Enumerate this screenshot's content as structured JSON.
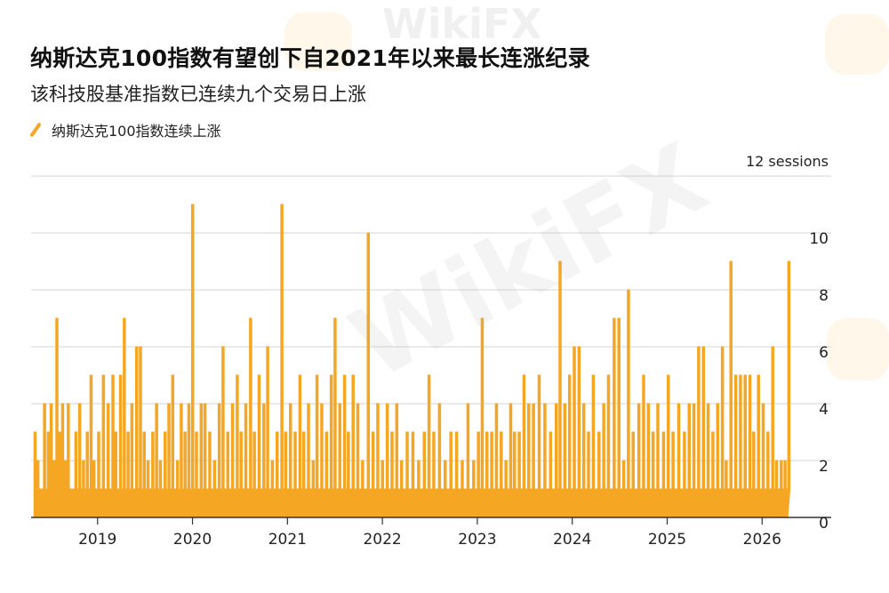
{
  "title": "纳斯达克100指数有望创下自2021年以来最长连涨纪录",
  "subtitle": "该科技股基准指数已连续九个交易日上涨",
  "legend_label": "纳斯达克100指数连续上涨",
  "watermark": "WikiFX",
  "colors": {
    "series": "#f5a623",
    "grid": "#d6d6d6",
    "axis": "#333333"
  },
  "chart_data": {
    "type": "area",
    "title": "纳斯达克100指数有望创下自2021年以来最长连涨纪录",
    "subtitle": "该科技股基准指数已连续九个交易日上涨",
    "xlabel": "",
    "ylabel": "",
    "y_unit_label": "12 sessions",
    "xlim": [
      2018.3,
      2026.4
    ],
    "ylim": [
      0,
      12
    ],
    "y_ticks": [
      0,
      2,
      4,
      6,
      8,
      10
    ],
    "y_tick_labels": [
      "0",
      "2",
      "4",
      "6",
      "8",
      "10"
    ],
    "x_ticks": [
      2019,
      2020,
      2021,
      2022,
      2023,
      2024,
      2025,
      2026
    ],
    "x_tick_labels": [
      "2019",
      "2020",
      "2021",
      "2022",
      "2023",
      "2024",
      "2025",
      "2026"
    ],
    "grid": true,
    "legend": "top-left",
    "series": [
      {
        "name": "纳斯达克100指数连续上涨",
        "points": [
          [
            2018.33,
            3
          ],
          [
            2018.36,
            2
          ],
          [
            2018.4,
            1
          ],
          [
            2018.43,
            4
          ],
          [
            2018.47,
            3
          ],
          [
            2018.5,
            4
          ],
          [
            2018.53,
            2
          ],
          [
            2018.56,
            7
          ],
          [
            2018.59,
            3
          ],
          [
            2018.62,
            4
          ],
          [
            2018.65,
            2
          ],
          [
            2018.68,
            4
          ],
          [
            2018.72,
            1
          ],
          [
            2018.76,
            3
          ],
          [
            2018.8,
            4
          ],
          [
            2018.84,
            2
          ],
          [
            2018.88,
            3
          ],
          [
            2018.92,
            5
          ],
          [
            2018.95,
            2
          ],
          [
            2019.0,
            3
          ],
          [
            2019.05,
            5
          ],
          [
            2019.1,
            4
          ],
          [
            2019.15,
            5
          ],
          [
            2019.18,
            3
          ],
          [
            2019.23,
            5
          ],
          [
            2019.27,
            7
          ],
          [
            2019.31,
            3
          ],
          [
            2019.35,
            4
          ],
          [
            2019.4,
            6
          ],
          [
            2019.44,
            6
          ],
          [
            2019.48,
            3
          ],
          [
            2019.52,
            2
          ],
          [
            2019.57,
            3
          ],
          [
            2019.61,
            4
          ],
          [
            2019.65,
            2
          ],
          [
            2019.7,
            3
          ],
          [
            2019.74,
            4
          ],
          [
            2019.78,
            5
          ],
          [
            2019.83,
            2
          ],
          [
            2019.87,
            4
          ],
          [
            2019.91,
            3
          ],
          [
            2019.95,
            4
          ],
          [
            2019.99,
            11
          ],
          [
            2020.03,
            3
          ],
          [
            2020.08,
            4
          ],
          [
            2020.12,
            4
          ],
          [
            2020.17,
            3
          ],
          [
            2020.22,
            2
          ],
          [
            2020.27,
            4
          ],
          [
            2020.31,
            6
          ],
          [
            2020.36,
            3
          ],
          [
            2020.41,
            4
          ],
          [
            2020.46,
            5
          ],
          [
            2020.5,
            3
          ],
          [
            2020.55,
            4
          ],
          [
            2020.6,
            7
          ],
          [
            2020.64,
            3
          ],
          [
            2020.69,
            5
          ],
          [
            2020.74,
            4
          ],
          [
            2020.78,
            6
          ],
          [
            2020.83,
            2
          ],
          [
            2020.88,
            3
          ],
          [
            2020.93,
            11
          ],
          [
            2020.97,
            3
          ],
          [
            2021.02,
            4
          ],
          [
            2021.07,
            3
          ],
          [
            2021.12,
            5
          ],
          [
            2021.16,
            3
          ],
          [
            2021.21,
            4
          ],
          [
            2021.26,
            2
          ],
          [
            2021.3,
            5
          ],
          [
            2021.35,
            4
          ],
          [
            2021.4,
            3
          ],
          [
            2021.45,
            5
          ],
          [
            2021.49,
            7
          ],
          [
            2021.54,
            4
          ],
          [
            2021.59,
            5
          ],
          [
            2021.63,
            3
          ],
          [
            2021.68,
            5
          ],
          [
            2021.73,
            4
          ],
          [
            2021.78,
            2
          ],
          [
            2021.84,
            10
          ],
          [
            2021.89,
            3
          ],
          [
            2021.94,
            4
          ],
          [
            2021.99,
            2
          ],
          [
            2022.04,
            4
          ],
          [
            2022.09,
            3
          ],
          [
            2022.14,
            4
          ],
          [
            2022.19,
            2
          ],
          [
            2022.25,
            3
          ],
          [
            2022.31,
            3
          ],
          [
            2022.37,
            2
          ],
          [
            2022.43,
            3
          ],
          [
            2022.48,
            5
          ],
          [
            2022.53,
            3
          ],
          [
            2022.59,
            4
          ],
          [
            2022.65,
            2
          ],
          [
            2022.71,
            3
          ],
          [
            2022.77,
            3
          ],
          [
            2022.83,
            2
          ],
          [
            2022.89,
            4
          ],
          [
            2022.95,
            2
          ],
          [
            2023.0,
            3
          ],
          [
            2023.04,
            7
          ],
          [
            2023.09,
            3
          ],
          [
            2023.14,
            3
          ],
          [
            2023.19,
            4
          ],
          [
            2023.24,
            3
          ],
          [
            2023.29,
            2
          ],
          [
            2023.34,
            4
          ],
          [
            2023.38,
            3
          ],
          [
            2023.43,
            3
          ],
          [
            2023.48,
            5
          ],
          [
            2023.53,
            4
          ],
          [
            2023.58,
            4
          ],
          [
            2023.64,
            5
          ],
          [
            2023.7,
            4
          ],
          [
            2023.76,
            3
          ],
          [
            2023.82,
            4
          ],
          [
            2023.86,
            9
          ],
          [
            2023.91,
            4
          ],
          [
            2023.96,
            5
          ],
          [
            2024.01,
            6
          ],
          [
            2024.06,
            6
          ],
          [
            2024.11,
            4
          ],
          [
            2024.16,
            3
          ],
          [
            2024.21,
            5
          ],
          [
            2024.27,
            3
          ],
          [
            2024.32,
            4
          ],
          [
            2024.37,
            5
          ],
          [
            2024.43,
            7
          ],
          [
            2024.48,
            7
          ],
          [
            2024.53,
            2
          ],
          [
            2024.58,
            8
          ],
          [
            2024.63,
            3
          ],
          [
            2024.69,
            4
          ],
          [
            2024.74,
            5
          ],
          [
            2024.79,
            4
          ],
          [
            2024.84,
            3
          ],
          [
            2024.89,
            4
          ],
          [
            2024.95,
            3
          ],
          [
            2025.0,
            5
          ],
          [
            2025.05,
            3
          ],
          [
            2025.11,
            4
          ],
          [
            2025.17,
            3
          ],
          [
            2025.22,
            4
          ],
          [
            2025.27,
            4
          ],
          [
            2025.32,
            6
          ],
          [
            2025.37,
            6
          ],
          [
            2025.42,
            4
          ],
          [
            2025.47,
            3
          ],
          [
            2025.52,
            4
          ],
          [
            2025.57,
            6
          ],
          [
            2025.61,
            2
          ],
          [
            2025.66,
            9
          ],
          [
            2025.71,
            5
          ],
          [
            2025.76,
            5
          ],
          [
            2025.81,
            5
          ],
          [
            2025.86,
            5
          ],
          [
            2025.9,
            3
          ],
          [
            2025.95,
            5
          ],
          [
            2026.0,
            4
          ],
          [
            2026.05,
            3
          ],
          [
            2026.1,
            6
          ],
          [
            2026.14,
            2
          ],
          [
            2026.19,
            2
          ],
          [
            2026.23,
            2
          ],
          [
            2026.27,
            9
          ]
        ]
      }
    ]
  }
}
